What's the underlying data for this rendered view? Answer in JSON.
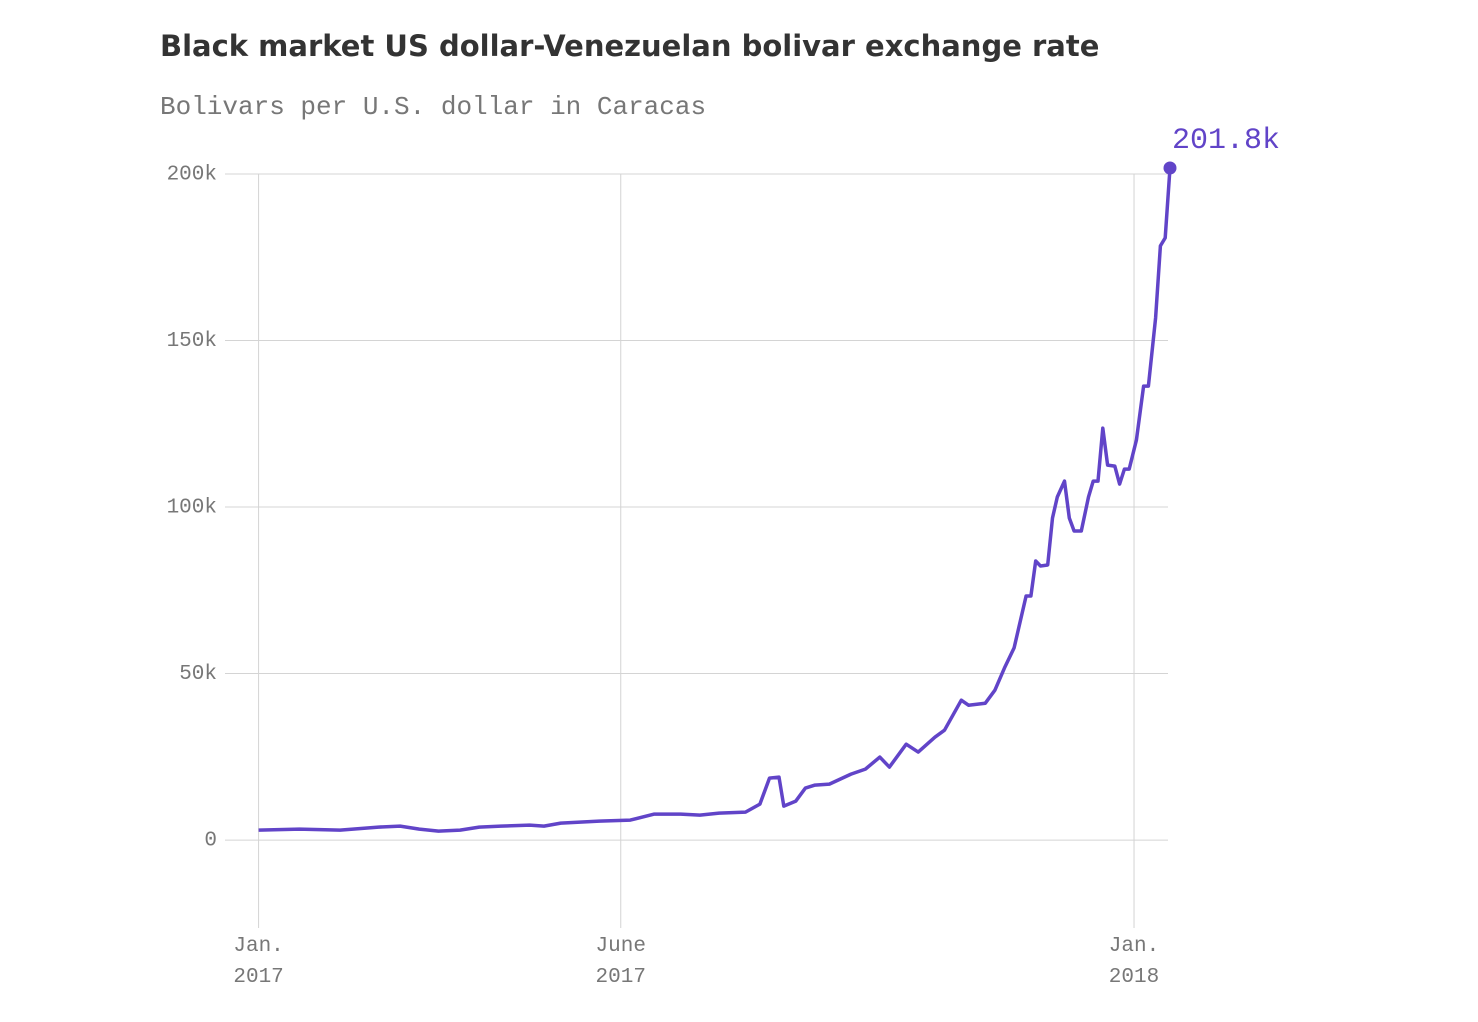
{
  "chart_data": {
    "type": "line",
    "title": "Black market US dollar-Venezuelan bolivar exchange rate",
    "subtitle": "Bolivars per U.S. dollar in Caracas",
    "x": [
      "2017-01-01",
      "2017-01-18",
      "2017-02-04",
      "2017-02-20",
      "2017-03-01",
      "2017-03-09",
      "2017-03-17",
      "2017-03-26",
      "2017-04-03",
      "2017-04-12",
      "2017-04-24",
      "2017-04-30",
      "2017-05-07",
      "2017-05-23",
      "2017-06-05",
      "2017-06-15",
      "2017-06-26",
      "2017-07-04",
      "2017-07-12",
      "2017-07-23",
      "2017-07-29",
      "2017-08-02",
      "2017-08-06",
      "2017-08-08",
      "2017-08-13",
      "2017-08-17",
      "2017-08-21",
      "2017-08-27",
      "2017-09-05",
      "2017-09-11",
      "2017-09-17",
      "2017-09-21",
      "2017-09-28",
      "2017-10-03",
      "2017-10-10",
      "2017-10-14",
      "2017-10-21",
      "2017-10-24",
      "2017-10-31",
      "2017-11-04",
      "2017-11-08",
      "2017-11-12",
      "2017-11-17",
      "2017-11-19",
      "2017-11-21",
      "2017-11-23",
      "2017-11-26",
      "2017-11-28",
      "2017-11-30",
      "2017-12-03",
      "2017-12-05",
      "2017-12-07",
      "2017-12-10",
      "2017-12-13",
      "2017-12-15",
      "2017-12-17",
      "2017-12-19",
      "2017-12-21",
      "2017-12-24",
      "2017-12-26",
      "2017-12-28",
      "2017-12-30",
      "2018-01-02",
      "2018-01-05",
      "2018-01-07",
      "2018-01-10",
      "2018-01-12",
      "2018-01-14",
      "2018-01-16"
    ],
    "series": [
      {
        "name": "Bolivars per U.S. dollar",
        "color": "#6144c8",
        "values": [
          3000,
          3300,
          3000,
          3900,
          4200,
          3300,
          2700,
          3000,
          3900,
          4200,
          4500,
          4200,
          5100,
          5700,
          6000,
          7800,
          7800,
          7500,
          8100,
          8400,
          10800,
          18600,
          18900,
          10200,
          11700,
          15600,
          16500,
          16800,
          19800,
          21300,
          24900,
          21900,
          28800,
          26400,
          30900,
          33000,
          42000,
          40500,
          41100,
          45000,
          51700,
          57700,
          73300,
          73300,
          83800,
          82300,
          82600,
          96700,
          103000,
          107800,
          96700,
          92800,
          92800,
          103000,
          107800,
          107800,
          123700,
          112600,
          112300,
          106900,
          111400,
          111400,
          120100,
          136300,
          136300,
          156800,
          178400,
          180800,
          201800
        ],
        "value_labels": [
          null,
          null,
          null,
          null,
          null,
          null,
          null,
          null,
          null,
          null,
          null,
          null,
          null,
          null,
          null,
          null,
          null,
          null,
          null,
          null,
          null,
          null,
          null,
          null,
          null,
          null,
          null,
          null,
          null,
          null,
          null,
          null,
          null,
          null,
          null,
          null,
          null,
          null,
          null,
          null,
          null,
          null,
          null,
          null,
          null,
          null,
          null,
          null,
          null,
          null,
          null,
          null,
          null,
          null,
          null,
          null,
          null,
          null,
          null,
          null,
          null,
          null,
          null,
          null,
          null,
          null,
          null,
          null,
          "201.8k"
        ]
      }
    ],
    "xlim": [
      "2016-12-18",
      "2018-01-16"
    ],
    "xticks": [
      {
        "value": "2017-01-01",
        "label": "Jan. 2017"
      },
      {
        "value": "2017-06-01",
        "label": "June 2017"
      },
      {
        "value": "2018-01-01",
        "label": "Jan. 2018"
      }
    ],
    "ylim": [
      -24000,
      200000
    ],
    "yticks": [
      0,
      {
        "value": 50000,
        "label": "50k"
      },
      {
        "value": 100000,
        "label": "100k"
      },
      {
        "value": 150000,
        "label": "150k"
      },
      {
        "value": 200000,
        "label": "200k"
      }
    ],
    "grid": true
  }
}
